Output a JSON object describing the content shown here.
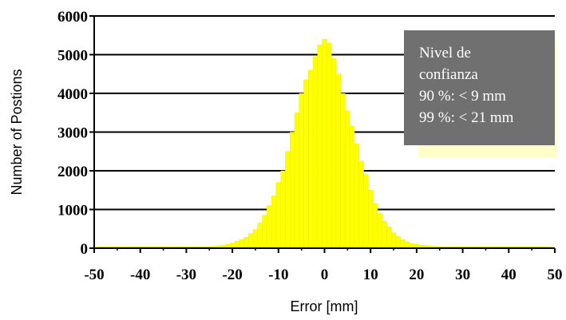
{
  "chart_data": {
    "type": "bar",
    "xlabel": "Error [mm]",
    "ylabel": "Number of Postions",
    "xlim": [
      -50,
      50
    ],
    "ylim": [
      0,
      6000
    ],
    "x_ticks": [
      -50,
      -40,
      -30,
      -20,
      -10,
      0,
      10,
      20,
      30,
      40,
      50
    ],
    "y_ticks": [
      0,
      1000,
      2000,
      3000,
      4000,
      5000,
      6000
    ],
    "grid": "horizontal",
    "bar_color": "#ffff00",
    "bin_width": 1,
    "x": [
      -49,
      -48,
      -47,
      -46,
      -45,
      -44,
      -43,
      -42,
      -41,
      -40,
      -39,
      -38,
      -37,
      -36,
      -35,
      -34,
      -33,
      -32,
      -31,
      -30,
      -29,
      -28,
      -27,
      -26,
      -25,
      -24,
      -23,
      -22,
      -21,
      -20,
      -19,
      -18,
      -17,
      -16,
      -15,
      -14,
      -13,
      -12,
      -11,
      -10,
      -9,
      -8,
      -7,
      -6,
      -5,
      -4,
      -3,
      -2,
      -1,
      0,
      1,
      2,
      3,
      4,
      5,
      6,
      7,
      8,
      9,
      10,
      11,
      12,
      13,
      14,
      15,
      16,
      17,
      18,
      19,
      20,
      21,
      22,
      23,
      24,
      25,
      26,
      27,
      28,
      29,
      30,
      31,
      32,
      33,
      34,
      35,
      36,
      37,
      38,
      39,
      40,
      41,
      42,
      43,
      44,
      45,
      46,
      47,
      48,
      49
    ],
    "values": [
      40,
      40,
      40,
      40,
      40,
      40,
      40,
      40,
      40,
      40,
      40,
      40,
      40,
      40,
      40,
      40,
      40,
      40,
      40,
      40,
      40,
      40,
      40,
      40,
      40,
      50,
      60,
      80,
      100,
      130,
      180,
      220,
      280,
      380,
      480,
      650,
      850,
      1100,
      1350,
      1700,
      2000,
      2500,
      3000,
      3500,
      4000,
      4350,
      4600,
      4950,
      5250,
      5400,
      5300,
      4900,
      4500,
      4000,
      3550,
      3150,
      2700,
      2250,
      1900,
      1500,
      1150,
      900,
      700,
      550,
      400,
      300,
      220,
      160,
      120,
      100,
      80,
      70,
      60,
      50,
      40,
      40,
      40,
      40,
      40,
      40,
      40,
      40,
      40,
      40,
      40,
      40,
      40,
      40,
      40,
      40,
      40,
      40,
      40,
      40,
      40,
      40,
      40,
      40,
      40
    ],
    "annotation": {
      "lines": [
        "Nivel de",
        "confianza",
        "90 %: < 9 mm",
        "99 %: < 21 mm"
      ],
      "background": "#707070",
      "text_color": "#ffffff",
      "placement": "top-right"
    }
  }
}
